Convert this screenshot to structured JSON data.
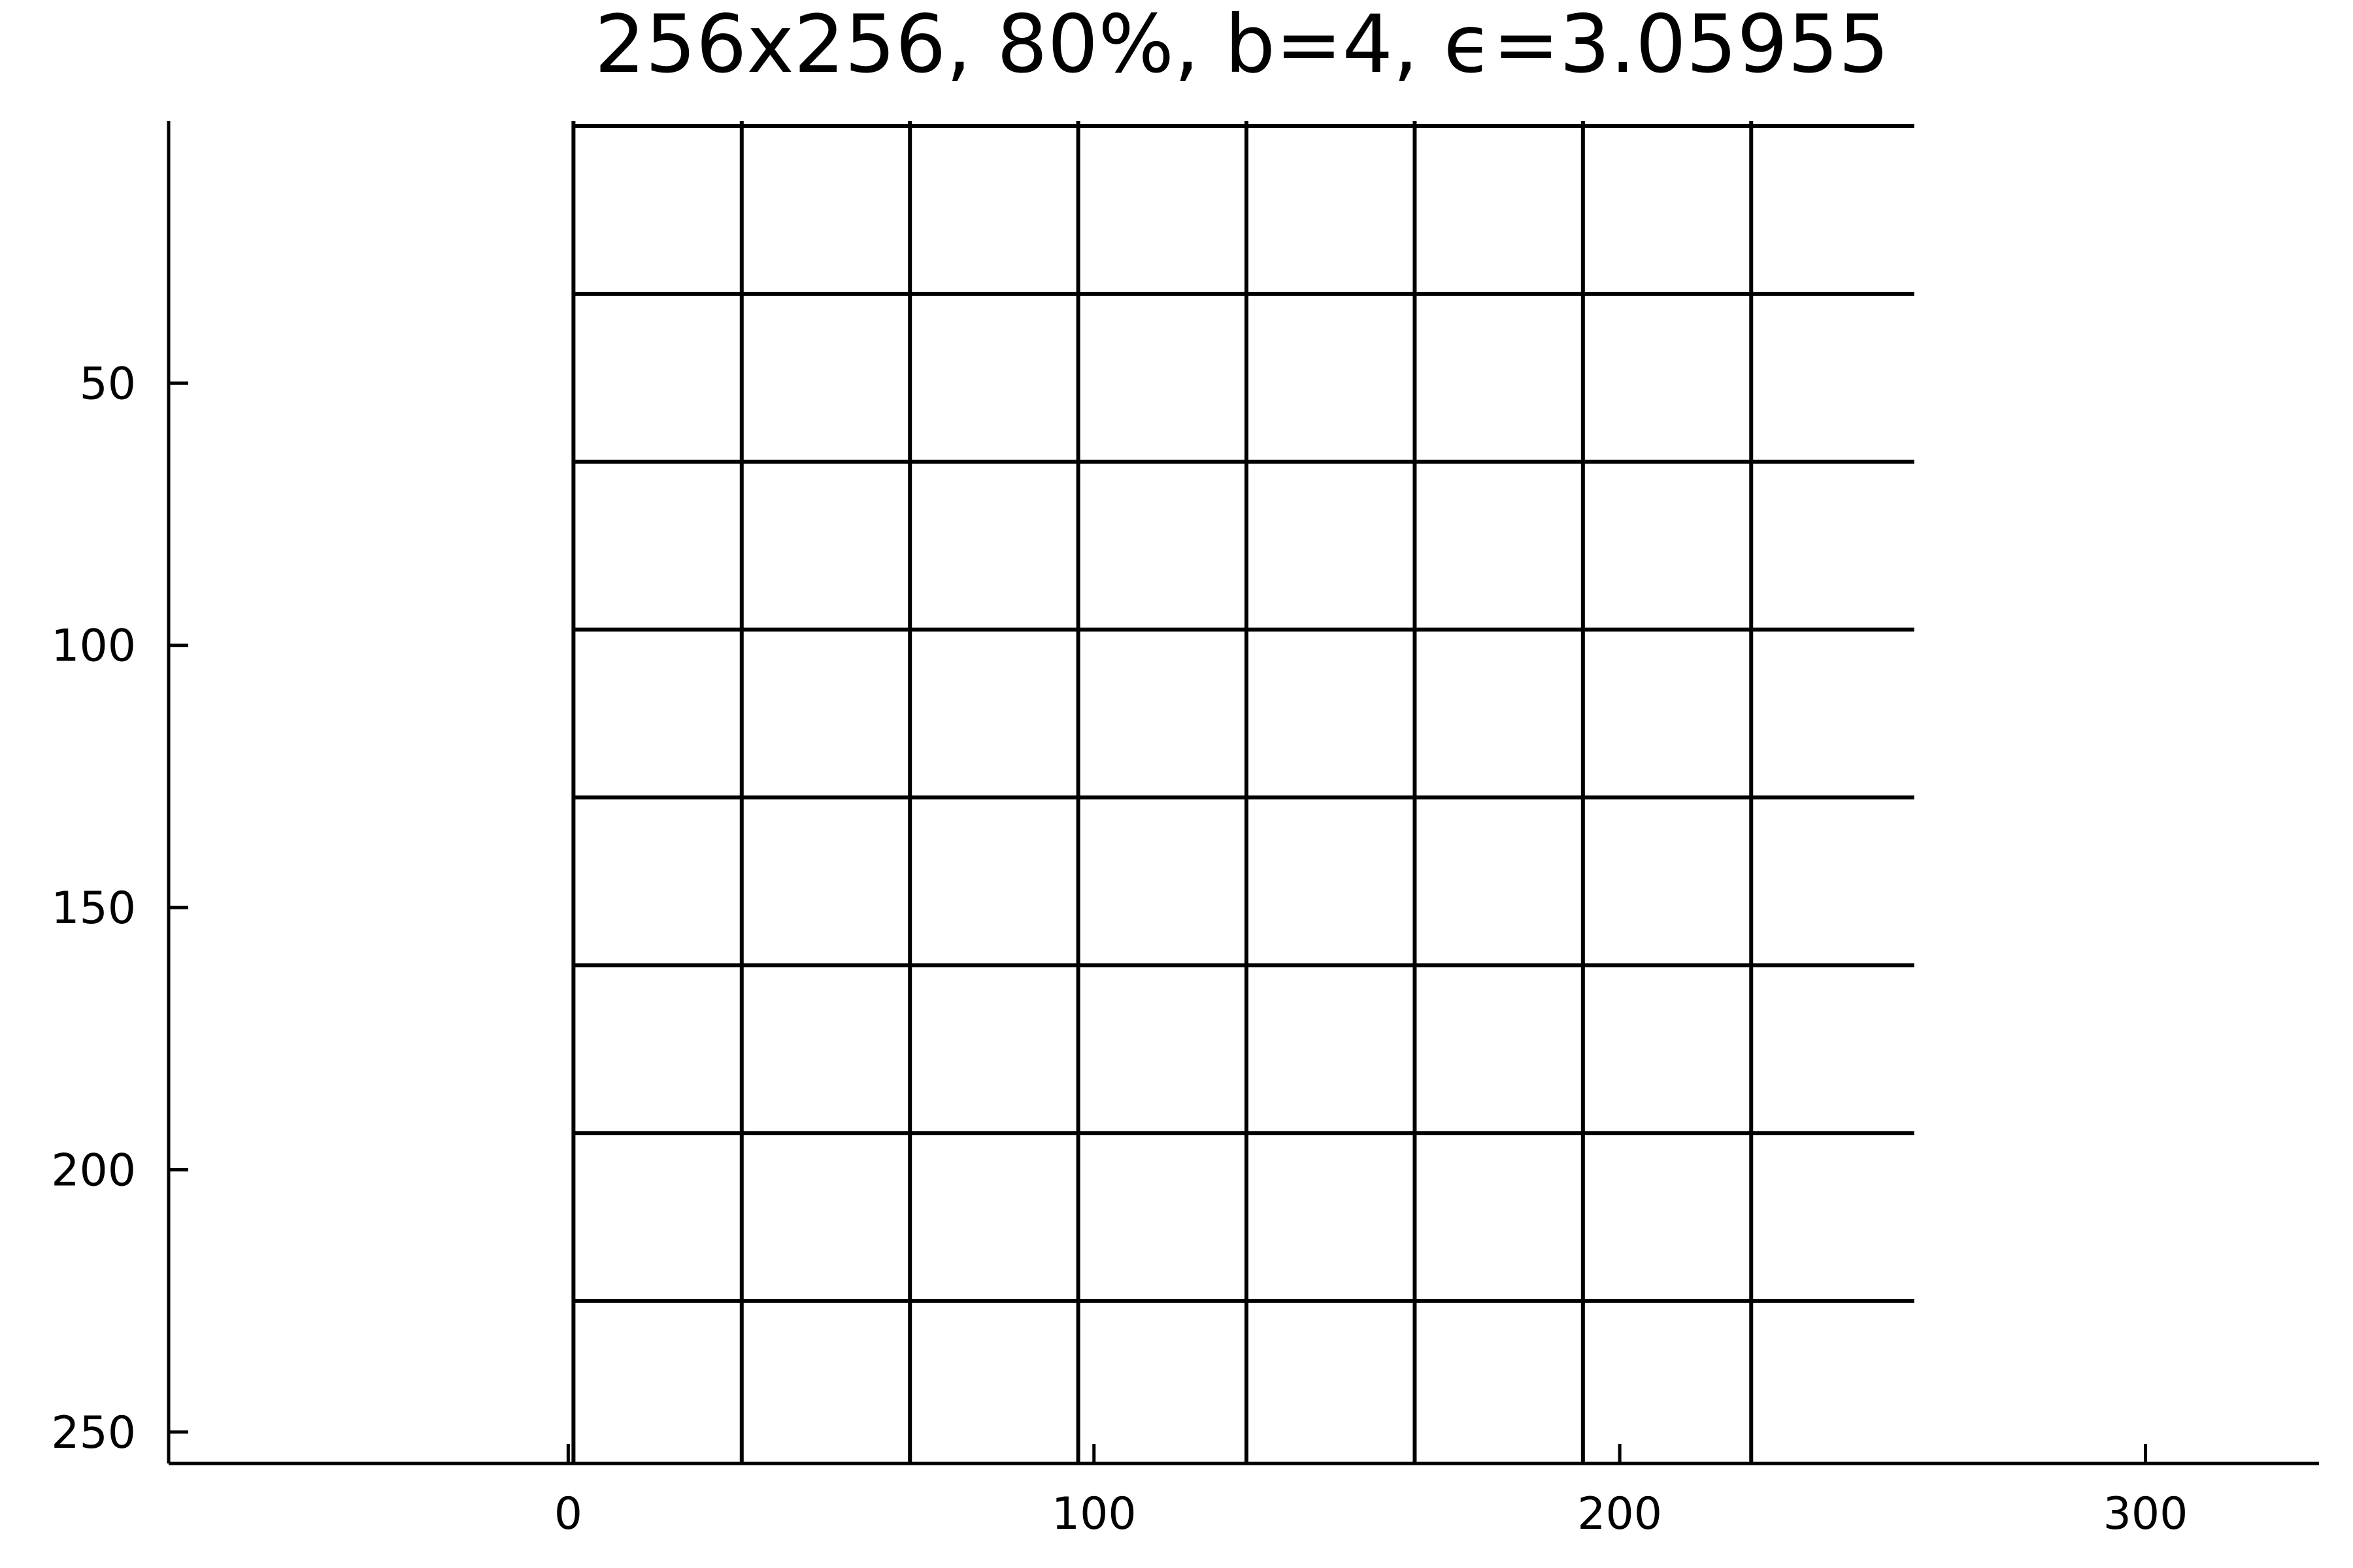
{
  "chart_data": {
    "type": "line",
    "title": "256x256, 80%, b=4, ϵ=3.05955",
    "xlabel": "",
    "ylabel": "",
    "xlim": [
      -76,
      333
    ],
    "ylim": [
      256,
      0
    ],
    "y_inverted": true,
    "grid": false,
    "legend": "none",
    "xticks": [
      0,
      100,
      200,
      300
    ],
    "yticks": [
      50,
      100,
      150,
      200,
      250
    ],
    "series": [
      {
        "kind": "vertical",
        "values": [
          1,
          33,
          65,
          97,
          129,
          161,
          193,
          225
        ]
      },
      {
        "kind": "horizontal",
        "values": [
          1,
          33,
          65,
          97,
          129,
          161,
          193,
          225
        ],
        "x_extent": [
          1,
          256
        ]
      }
    ],
    "colors": {
      "line": "#000000",
      "background": "#ffffff"
    }
  }
}
